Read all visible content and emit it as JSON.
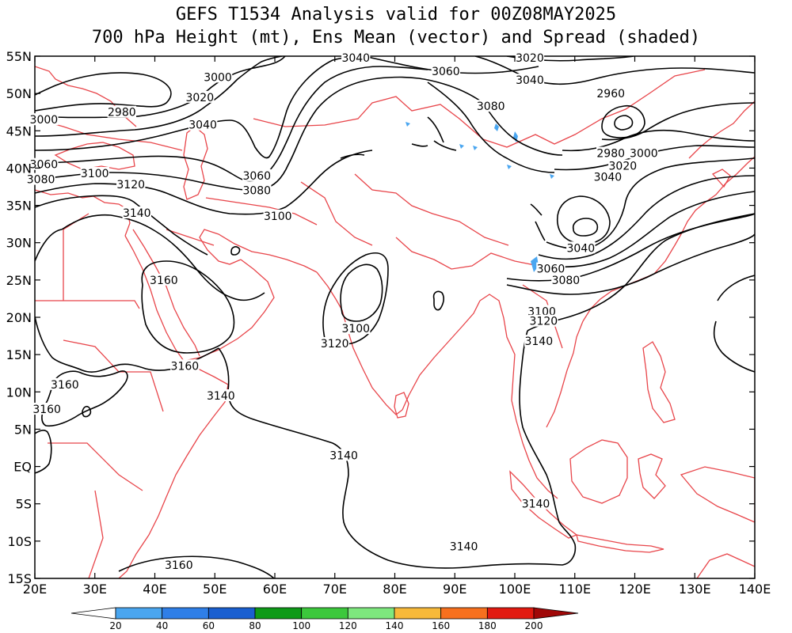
{
  "title_line1": "GEFS T1534 Analysis valid for 00Z08MAY2025",
  "title_line2": "700 hPa Height (mt), Ens Mean (vector) and Spread (shaded)",
  "lon_ticks": [
    "20E",
    "30E",
    "40E",
    "50E",
    "60E",
    "70E",
    "80E",
    "90E",
    "100E",
    "110E",
    "120E",
    "130E",
    "140E"
  ],
  "lat_ticks": [
    "55N",
    "50N",
    "45N",
    "40N",
    "35N",
    "30N",
    "25N",
    "20N",
    "15N",
    "10N",
    "5N",
    "EQ",
    "5S",
    "10S",
    "15S"
  ],
  "colorbar": {
    "colors": [
      "#ffffff",
      "#4aa6f0",
      "#2f7fe8",
      "#1a5fd0",
      "#0e9a18",
      "#3cc83c",
      "#7ee87e",
      "#f7b93a",
      "#f7701e",
      "#e21a10",
      "#a00808"
    ],
    "labels": [
      "20",
      "40",
      "60",
      "80",
      "100",
      "120",
      "140",
      "160",
      "180",
      "200"
    ]
  },
  "contour_labels": [
    {
      "text": "3040",
      "lon": 73.5,
      "lat": 54.8
    },
    {
      "text": "3020",
      "lon": 102.5,
      "lat": 54.8
    },
    {
      "text": "3060",
      "lon": 88.5,
      "lat": 53.0
    },
    {
      "text": "3040",
      "lon": 102.5,
      "lat": 51.8
    },
    {
      "text": "3000",
      "lon": 50.5,
      "lat": 52.2
    },
    {
      "text": "3020",
      "lon": 47.5,
      "lat": 49.5
    },
    {
      "text": "2960",
      "lon": 116.0,
      "lat": 50.0
    },
    {
      "text": "3080",
      "lon": 96.0,
      "lat": 48.3
    },
    {
      "text": "2980",
      "lon": 34.5,
      "lat": 47.5
    },
    {
      "text": "3000",
      "lon": 21.5,
      "lat": 46.5
    },
    {
      "text": "3040",
      "lon": 48.0,
      "lat": 45.8
    },
    {
      "text": "2980",
      "lon": 116.0,
      "lat": 42.0
    },
    {
      "text": "3000",
      "lon": 121.5,
      "lat": 42.0
    },
    {
      "text": "3020",
      "lon": 118.0,
      "lat": 40.3
    },
    {
      "text": "3060",
      "lon": 21.5,
      "lat": 40.5
    },
    {
      "text": "3040",
      "lon": 115.5,
      "lat": 38.8
    },
    {
      "text": "3100",
      "lon": 30.0,
      "lat": 39.3
    },
    {
      "text": "3060",
      "lon": 57.0,
      "lat": 39.0
    },
    {
      "text": "3080",
      "lon": 21.0,
      "lat": 38.5
    },
    {
      "text": "3120",
      "lon": 36.0,
      "lat": 37.8
    },
    {
      "text": "3080",
      "lon": 57.0,
      "lat": 37.0
    },
    {
      "text": "3140",
      "lon": 37.0,
      "lat": 34.0
    },
    {
      "text": "3100",
      "lon": 60.5,
      "lat": 33.6
    },
    {
      "text": "3040",
      "lon": 111.0,
      "lat": 29.3
    },
    {
      "text": "3060",
      "lon": 106.0,
      "lat": 26.5
    },
    {
      "text": "3080",
      "lon": 108.5,
      "lat": 25.0
    },
    {
      "text": "3160",
      "lon": 41.5,
      "lat": 25.0
    },
    {
      "text": "3100",
      "lon": 104.5,
      "lat": 20.8
    },
    {
      "text": "3120",
      "lon": 104.8,
      "lat": 19.5
    },
    {
      "text": "3100",
      "lon": 73.5,
      "lat": 18.5
    },
    {
      "text": "3120",
      "lon": 70.0,
      "lat": 16.5
    },
    {
      "text": "3140",
      "lon": 104.0,
      "lat": 16.8
    },
    {
      "text": "3160",
      "lon": 45.0,
      "lat": 13.5
    },
    {
      "text": "3160",
      "lon": 25.0,
      "lat": 11.0
    },
    {
      "text": "3140",
      "lon": 51.0,
      "lat": 9.5
    },
    {
      "text": "3160",
      "lon": 22.0,
      "lat": 7.7
    },
    {
      "text": "3140",
      "lon": 71.5,
      "lat": 1.5
    },
    {
      "text": "3140",
      "lon": 103.5,
      "lat": -5.0
    },
    {
      "text": "3140",
      "lon": 91.5,
      "lat": -10.7
    },
    {
      "text": "3160",
      "lon": 44.0,
      "lat": -13.2
    }
  ]
}
